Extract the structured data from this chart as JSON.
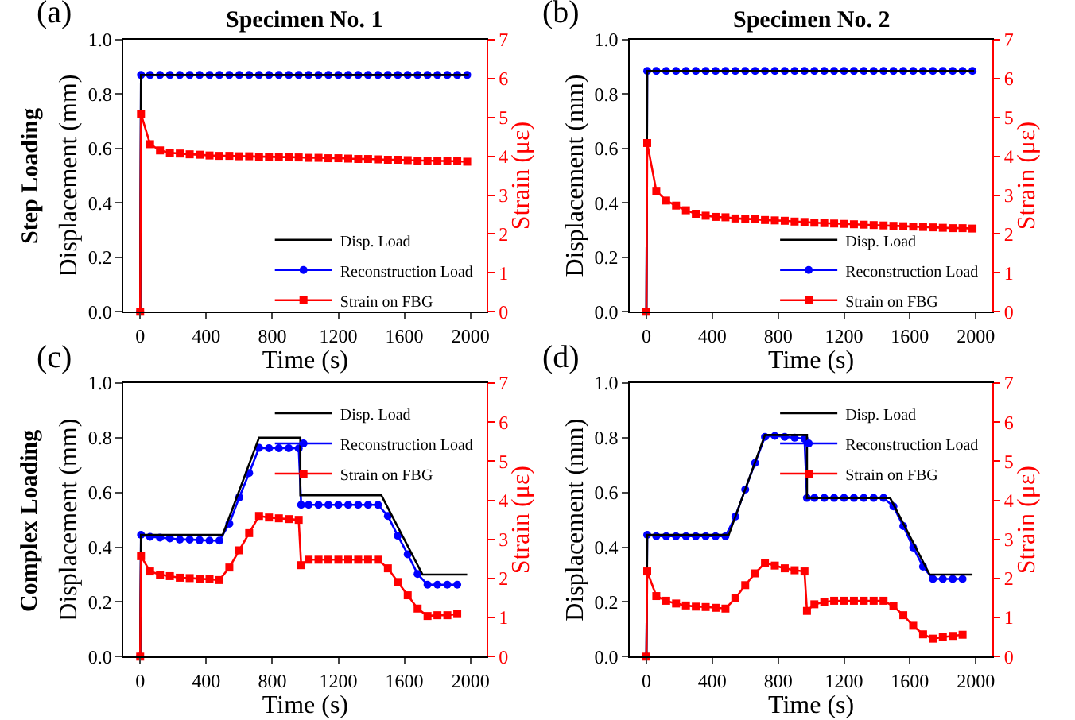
{
  "chart_data": [
    {
      "type": "line",
      "title": "Specimen No. 1",
      "xlabel": "Time (s)",
      "ylabel": "Displacement (mm)",
      "y2label": "Strain (με)",
      "annotations": [
        "(a)",
        "Step Loading"
      ],
      "legend": "bottom right",
      "xlim": [
        -100,
        2100
      ],
      "xticks": [
        0,
        400,
        800,
        1200,
        1600,
        2000
      ],
      "ylim": [
        0,
        1
      ],
      "yticks": [
        {
          "value": 0,
          "label": "0.0"
        },
        {
          "value": 0.2,
          "label": "0.2"
        },
        {
          "value": 0.4,
          "label": "0.4"
        },
        {
          "value": 0.6,
          "label": "0.6"
        },
        {
          "value": 0.8,
          "label": "0.8"
        },
        {
          "value": 1,
          "label": "1.0"
        }
      ],
      "y2lim": [
        0,
        7
      ],
      "y2ticks": [
        0,
        1,
        2,
        3,
        4,
        5,
        6,
        7
      ],
      "series": [
        {
          "name": "Disp. Load",
          "color": "#000000",
          "marker": "none",
          "x": [
            0,
            5,
            1990
          ],
          "values": [
            0,
            0.87,
            0.87
          ]
        },
        {
          "name": "Reconstruction Load",
          "color": "#0000ff",
          "marker": "circle",
          "x": [
            0,
            5,
            60,
            120,
            180,
            240,
            300,
            360,
            420,
            480,
            540,
            600,
            660,
            720,
            780,
            840,
            900,
            960,
            1020,
            1080,
            1140,
            1200,
            1260,
            1320,
            1380,
            1440,
            1500,
            1560,
            1620,
            1680,
            1740,
            1800,
            1860,
            1920,
            1980
          ],
          "values": [
            0,
            0.87,
            0.87,
            0.87,
            0.87,
            0.87,
            0.87,
            0.87,
            0.87,
            0.87,
            0.87,
            0.87,
            0.87,
            0.87,
            0.87,
            0.87,
            0.87,
            0.87,
            0.87,
            0.87,
            0.87,
            0.87,
            0.87,
            0.87,
            0.87,
            0.87,
            0.87,
            0.87,
            0.87,
            0.87,
            0.87,
            0.87,
            0.87,
            0.87,
            0.87
          ]
        },
        {
          "name": "Strain on FBG",
          "color": "#ff0000",
          "marker": "square",
          "axis": "y2",
          "x": [
            0,
            5,
            60,
            120,
            180,
            240,
            300,
            360,
            420,
            480,
            540,
            600,
            660,
            720,
            780,
            840,
            900,
            960,
            1020,
            1080,
            1140,
            1200,
            1260,
            1320,
            1380,
            1440,
            1500,
            1560,
            1620,
            1680,
            1740,
            1800,
            1860,
            1920,
            1980
          ],
          "values": [
            0,
            5.09,
            4.31,
            4.15,
            4.09,
            4.07,
            4.05,
            4.04,
            4.02,
            4.01,
            4.01,
            4.0,
            4.0,
            3.99,
            3.99,
            3.98,
            3.98,
            3.97,
            3.96,
            3.96,
            3.95,
            3.95,
            3.94,
            3.93,
            3.93,
            3.92,
            3.91,
            3.91,
            3.9,
            3.89,
            3.89,
            3.88,
            3.88,
            3.87,
            3.86
          ]
        }
      ]
    },
    {
      "type": "line",
      "title": "Specimen No. 2",
      "xlabel": "Time (s)",
      "ylabel": "Displacement (mm)",
      "y2label": "Strain (με)",
      "annotations": [
        "(b)"
      ],
      "legend": "bottom right",
      "xlim": [
        -100,
        2100
      ],
      "xticks": [
        0,
        400,
        800,
        1200,
        1600,
        2000
      ],
      "ylim": [
        0,
        1
      ],
      "yticks": [
        {
          "value": 0,
          "label": "0.0"
        },
        {
          "value": 0.2,
          "label": "0.2"
        },
        {
          "value": 0.4,
          "label": "0.4"
        },
        {
          "value": 0.6,
          "label": "0.6"
        },
        {
          "value": 0.8,
          "label": "0.8"
        },
        {
          "value": 1,
          "label": "1.0"
        }
      ],
      "y2lim": [
        0,
        7
      ],
      "y2ticks": [
        0,
        1,
        2,
        3,
        4,
        5,
        6,
        7
      ],
      "series": [
        {
          "name": "Disp. Load",
          "color": "#000000",
          "marker": "none",
          "x": [
            0,
            5,
            1990
          ],
          "values": [
            0,
            0.885,
            0.885
          ]
        },
        {
          "name": "Reconstruction Load",
          "color": "#0000ff",
          "marker": "circle",
          "x": [
            0,
            5,
            60,
            120,
            180,
            240,
            300,
            360,
            420,
            480,
            540,
            600,
            660,
            720,
            780,
            840,
            900,
            960,
            1020,
            1080,
            1140,
            1200,
            1260,
            1320,
            1380,
            1440,
            1500,
            1560,
            1620,
            1680,
            1740,
            1800,
            1860,
            1920,
            1980
          ],
          "values": [
            0,
            0.885,
            0.885,
            0.885,
            0.885,
            0.885,
            0.885,
            0.885,
            0.885,
            0.885,
            0.885,
            0.885,
            0.885,
            0.885,
            0.885,
            0.885,
            0.885,
            0.885,
            0.885,
            0.885,
            0.885,
            0.885,
            0.885,
            0.885,
            0.885,
            0.885,
            0.885,
            0.885,
            0.885,
            0.885,
            0.885,
            0.885,
            0.885,
            0.885,
            0.885
          ]
        },
        {
          "name": "Strain on FBG",
          "color": "#ff0000",
          "marker": "square",
          "axis": "y2",
          "x": [
            0,
            5,
            60,
            120,
            180,
            240,
            300,
            360,
            420,
            480,
            540,
            600,
            660,
            720,
            780,
            840,
            900,
            960,
            1020,
            1080,
            1140,
            1200,
            1260,
            1320,
            1380,
            1440,
            1500,
            1560,
            1620,
            1680,
            1740,
            1800,
            1860,
            1920,
            1980
          ],
          "values": [
            0,
            4.34,
            3.11,
            2.86,
            2.73,
            2.61,
            2.52,
            2.47,
            2.44,
            2.43,
            2.4,
            2.39,
            2.38,
            2.36,
            2.35,
            2.34,
            2.32,
            2.31,
            2.29,
            2.28,
            2.27,
            2.26,
            2.25,
            2.24,
            2.23,
            2.22,
            2.21,
            2.2,
            2.19,
            2.18,
            2.17,
            2.16,
            2.15,
            2.15,
            2.14
          ]
        }
      ]
    },
    {
      "type": "line",
      "xlabel": "Time (s)",
      "ylabel": "Displacement (mm)",
      "y2label": "Strain (με)",
      "annotations": [
        "(c)",
        "Complex Loading"
      ],
      "legend": "top right",
      "xlim": [
        -100,
        2100
      ],
      "xticks": [
        0,
        400,
        800,
        1200,
        1600,
        2000
      ],
      "ylim": [
        0,
        1
      ],
      "yticks": [
        {
          "value": 0,
          "label": "0.0"
        },
        {
          "value": 0.2,
          "label": "0.2"
        },
        {
          "value": 0.4,
          "label": "0.4"
        },
        {
          "value": 0.6,
          "label": "0.6"
        },
        {
          "value": 0.8,
          "label": "0.8"
        },
        {
          "value": 1,
          "label": "1.0"
        }
      ],
      "y2lim": [
        0,
        7
      ],
      "y2ticks": [
        0,
        1,
        2,
        3,
        4,
        5,
        6,
        7
      ],
      "series": [
        {
          "name": "Disp. Load",
          "color": "#000000",
          "marker": "none",
          "x": [
            0,
            5,
            500,
            720,
            970,
            970,
            1460,
            1710,
            1980
          ],
          "values": [
            0,
            0.445,
            0.445,
            0.8,
            0.8,
            0.59,
            0.59,
            0.3,
            0.3
          ]
        },
        {
          "name": "Reconstruction Load",
          "color": "#0000ff",
          "marker": "circle",
          "x": [
            0,
            5,
            60,
            120,
            180,
            240,
            300,
            360,
            420,
            480,
            540,
            600,
            660,
            720,
            780,
            840,
            900,
            960,
            975,
            1020,
            1080,
            1140,
            1200,
            1260,
            1320,
            1380,
            1440,
            1500,
            1560,
            1620,
            1680,
            1740,
            1800,
            1860,
            1920
          ],
          "values": [
            0,
            0.445,
            0.438,
            0.435,
            0.432,
            0.428,
            0.428,
            0.426,
            0.424,
            0.424,
            0.486,
            0.582,
            0.671,
            0.763,
            0.762,
            0.762,
            0.762,
            0.761,
            0.555,
            0.555,
            0.555,
            0.555,
            0.555,
            0.555,
            0.555,
            0.555,
            0.555,
            0.514,
            0.442,
            0.374,
            0.302,
            0.263,
            0.263,
            0.263,
            0.263
          ]
        },
        {
          "name": "Strain on FBG",
          "color": "#ff0000",
          "marker": "square",
          "axis": "y2",
          "x": [
            0,
            5,
            60,
            120,
            180,
            240,
            300,
            360,
            420,
            480,
            540,
            600,
            660,
            720,
            780,
            840,
            900,
            960,
            975,
            1020,
            1080,
            1140,
            1200,
            1260,
            1320,
            1380,
            1440,
            1500,
            1560,
            1620,
            1680,
            1740,
            1800,
            1860,
            1920
          ],
          "values": [
            0,
            2.57,
            2.18,
            2.1,
            2.06,
            2.02,
            2.01,
            1.99,
            1.98,
            1.96,
            2.28,
            2.72,
            3.16,
            3.6,
            3.56,
            3.54,
            3.52,
            3.5,
            2.34,
            2.48,
            2.48,
            2.48,
            2.48,
            2.48,
            2.48,
            2.48,
            2.48,
            2.26,
            1.91,
            1.57,
            1.23,
            1.04,
            1.06,
            1.06,
            1.09
          ]
        }
      ]
    },
    {
      "type": "line",
      "xlabel": "Time (s)",
      "ylabel": "Displacement (mm)",
      "y2label": "Strain (με)",
      "annotations": [
        "(d)"
      ],
      "legend": "top right",
      "xlim": [
        -100,
        2100
      ],
      "xticks": [
        0,
        400,
        800,
        1200,
        1600,
        2000
      ],
      "ylim": [
        0,
        1
      ],
      "yticks": [
        {
          "value": 0,
          "label": "0.0"
        },
        {
          "value": 0.2,
          "label": "0.2"
        },
        {
          "value": 0.4,
          "label": "0.4"
        },
        {
          "value": 0.6,
          "label": "0.6"
        },
        {
          "value": 0.8,
          "label": "0.8"
        },
        {
          "value": 1,
          "label": "1.0"
        }
      ],
      "y2lim": [
        0,
        7
      ],
      "y2ticks": [
        0,
        1,
        2,
        3,
        4,
        5,
        6,
        7
      ],
      "series": [
        {
          "name": "Disp. Load",
          "color": "#000000",
          "marker": "none",
          "x": [
            0,
            5,
            500,
            720,
            975,
            975,
            1480,
            1720,
            1980
          ],
          "values": [
            0,
            0.445,
            0.445,
            0.81,
            0.81,
            0.58,
            0.58,
            0.3,
            0.3
          ]
        },
        {
          "name": "Reconstruction Load",
          "color": "#0000ff",
          "marker": "circle",
          "x": [
            0,
            5,
            60,
            120,
            180,
            240,
            300,
            360,
            420,
            480,
            540,
            600,
            660,
            720,
            780,
            840,
            900,
            960,
            975,
            1020,
            1080,
            1140,
            1200,
            1260,
            1320,
            1380,
            1440,
            1500,
            1560,
            1620,
            1680,
            1740,
            1800,
            1860,
            1920
          ],
          "values": [
            0,
            0.445,
            0.44,
            0.44,
            0.44,
            0.44,
            0.44,
            0.44,
            0.44,
            0.44,
            0.512,
            0.611,
            0.708,
            0.803,
            0.807,
            0.803,
            0.8,
            0.796,
            0.58,
            0.58,
            0.58,
            0.58,
            0.58,
            0.58,
            0.58,
            0.58,
            0.58,
            0.549,
            0.477,
            0.399,
            0.329,
            0.284,
            0.284,
            0.284,
            0.284
          ]
        },
        {
          "name": "Strain on FBG",
          "color": "#ff0000",
          "marker": "square",
          "axis": "y2",
          "x": [
            0,
            5,
            60,
            120,
            180,
            240,
            300,
            360,
            420,
            480,
            540,
            600,
            660,
            720,
            780,
            840,
            900,
            960,
            975,
            1020,
            1080,
            1140,
            1200,
            1260,
            1320,
            1380,
            1440,
            1500,
            1560,
            1620,
            1680,
            1740,
            1800,
            1860,
            1920
          ],
          "values": [
            0,
            2.18,
            1.55,
            1.43,
            1.36,
            1.31,
            1.28,
            1.27,
            1.25,
            1.23,
            1.49,
            1.83,
            2.13,
            2.4,
            2.33,
            2.26,
            2.21,
            2.18,
            1.17,
            1.34,
            1.4,
            1.43,
            1.43,
            1.43,
            1.43,
            1.43,
            1.43,
            1.29,
            1.06,
            0.79,
            0.57,
            0.46,
            0.5,
            0.53,
            0.56
          ]
        }
      ]
    }
  ]
}
